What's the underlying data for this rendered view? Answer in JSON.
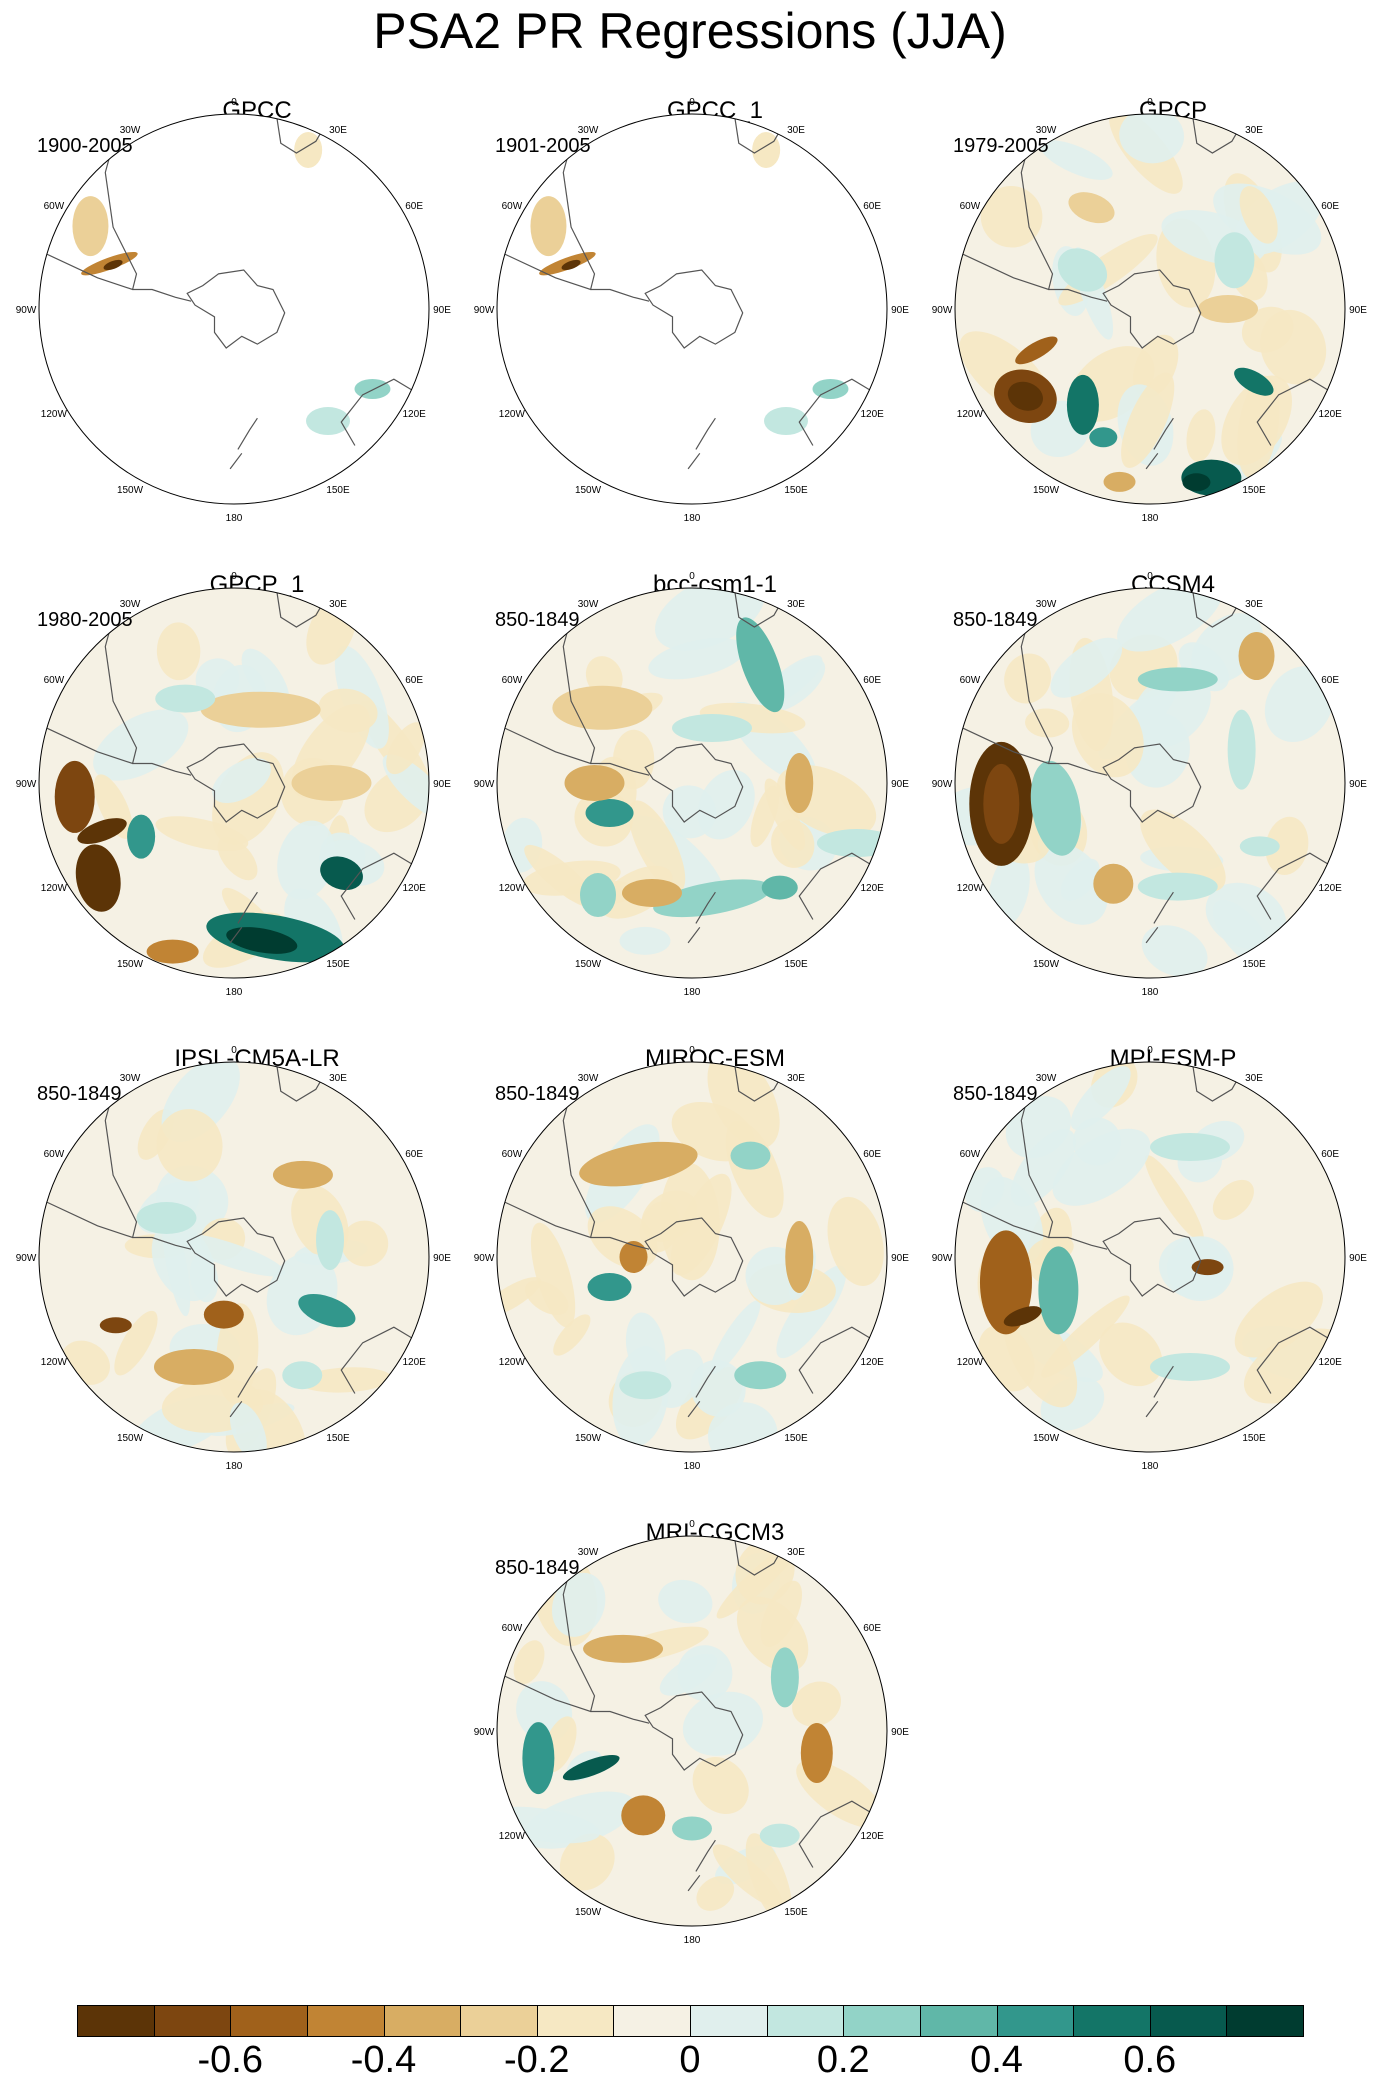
{
  "title": "PSA2 PR Regressions (JJA)",
  "lon_labels": [
    "0",
    "30E",
    "60E",
    "90E",
    "120E",
    "150E",
    "180",
    "150W",
    "120W",
    "90W",
    "60W",
    "30W"
  ],
  "panels": [
    {
      "name": "GPCC",
      "period": "1900-2005",
      "data_coverage": "land-only"
    },
    {
      "name": "GPCC_1",
      "period": "1901-2005",
      "data_coverage": "land-only"
    },
    {
      "name": "GPCP",
      "period": "1979-2005",
      "data_coverage": "global"
    },
    {
      "name": "GPCP_1",
      "period": "1980-2005",
      "data_coverage": "global"
    },
    {
      "name": "bcc-csm1-1",
      "period": "850-1849",
      "data_coverage": "global"
    },
    {
      "name": "CCSM4",
      "period": "850-1849",
      "data_coverage": "global"
    },
    {
      "name": "IPSL-CM5A-LR",
      "period": "850-1849",
      "data_coverage": "global"
    },
    {
      "name": "MIROC-ESM",
      "period": "850-1849",
      "data_coverage": "global"
    },
    {
      "name": "MPI-ESM-P",
      "period": "850-1849",
      "data_coverage": "global"
    },
    {
      "name": "MRI-CGCM3",
      "period": "850-1849",
      "data_coverage": "global"
    }
  ],
  "colorbar": {
    "labels": [
      "-0.6",
      "-0.4",
      "-0.2",
      "0",
      "0.2",
      "0.4",
      "0.6"
    ],
    "colors": [
      "#5c3407",
      "#7d4610",
      "#a0611b",
      "#c18434",
      "#d8ad63",
      "#ebd098",
      "#f6e8c3",
      "#f5f1e4",
      "#e0efed",
      "#c2e7e0",
      "#92d3c7",
      "#60b7a8",
      "#32978c",
      "#137567",
      "#075a4e",
      "#003c30"
    ]
  }
}
